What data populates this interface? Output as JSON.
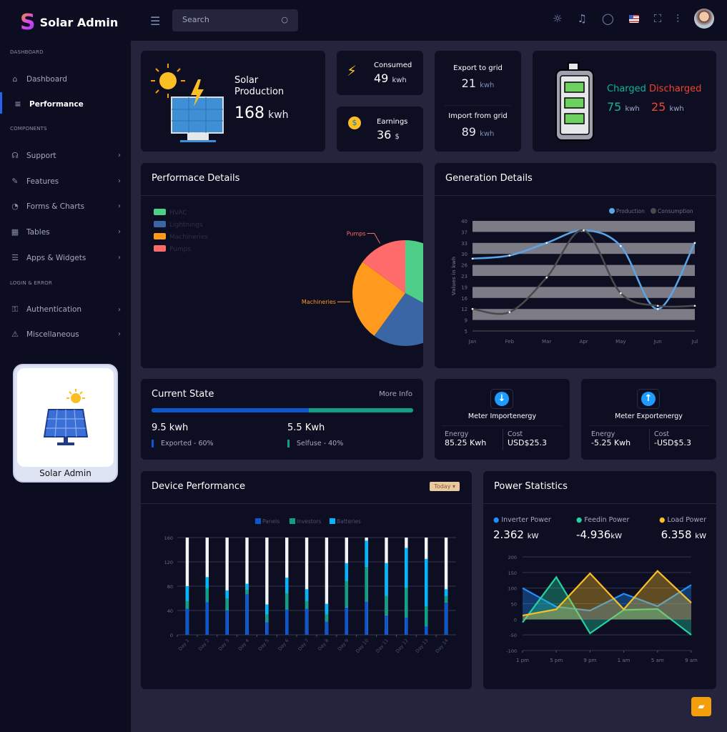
{
  "app": {
    "logo_letter": "S",
    "title": "Solar Admin"
  },
  "header": {
    "search_placeholder": "Search",
    "icons": [
      "sun-icon",
      "bell-icon",
      "chat-icon",
      "us-flag-icon",
      "fullscreen-icon",
      "sliders-icon",
      "avatar"
    ]
  },
  "sidebar": {
    "sections": [
      "DASHBOARD",
      "COMPONENTS",
      "LOGIN & ERROR"
    ],
    "items": [
      {
        "label": "Dashboard",
        "icon": "home-icon"
      },
      {
        "label": "Performance",
        "icon": "list-icon",
        "active": true
      },
      {
        "label": "Support",
        "icon": "headset-icon"
      },
      {
        "label": "Features",
        "icon": "edit-icon"
      },
      {
        "label": "Forms & Charts",
        "icon": "pie-icon"
      },
      {
        "label": "Tables",
        "icon": "grid-icon"
      },
      {
        "label": "Apps & Widgets",
        "icon": "database-icon"
      },
      {
        "label": "Authentication",
        "icon": "lock-icon"
      },
      {
        "label": "Miscellaneous",
        "icon": "warning-icon"
      }
    ],
    "promo_label": "Solar Admin"
  },
  "stats": {
    "solar": {
      "label1": "Solar",
      "label2": "Production",
      "value": "168",
      "unit": "kwh"
    },
    "consumed": {
      "label": "Consumed",
      "value": "49",
      "unit": "kwh"
    },
    "earnings": {
      "label": "Earnings",
      "value": "36",
      "unit": "$"
    },
    "export": {
      "label": "Export to grid",
      "value": "21",
      "unit": "kwh"
    },
    "import": {
      "label": "Import from grid",
      "value": "89",
      "unit": "kwh"
    },
    "battery": {
      "charged_label": "Charged",
      "discharged_label": "Discharged",
      "charged": "75",
      "discharged": "25",
      "unit": "kwh",
      "charged_color": "#10b59a",
      "discharged_color": "#f0442c"
    }
  },
  "performance": {
    "title": "Performace Details"
  },
  "generation": {
    "title": "Generation Details"
  },
  "current_state": {
    "title": "Current State",
    "more": "More Info",
    "exported_value": "9.5 kwh",
    "selfuse_value": "5.5 Kwh",
    "exported_label": "Exported - 60%",
    "selfuse_label": "Selfuse - 40%",
    "exported_pct": 60,
    "selfuse_pct": 40
  },
  "meter_import": {
    "title": "Meter Importenergy",
    "energy_label": "Energy",
    "energy": "85.25 Kwh",
    "cost_label": "Cost",
    "cost": "USD$25.3"
  },
  "meter_export": {
    "title": "Meter Exportenergy",
    "energy_label": "Energy",
    "energy": "-5.25 Kwh",
    "cost_label": "Cost",
    "cost": "-USD$5.3"
  },
  "device": {
    "title": "Device Performance",
    "filter": "Today"
  },
  "power": {
    "title": "Power Statistics",
    "stats": [
      {
        "label": "Inverter Power",
        "value": "2.362",
        "unit": "kW",
        "color": "#1e90ff"
      },
      {
        "label": "Feedin Power",
        "value": "-4.936",
        "unit": "kW",
        "color": "#22d3a0"
      },
      {
        "label": "Load Power",
        "value": "6.358",
        "unit": "kW",
        "color": "#fbbf24"
      }
    ]
  },
  "chart_data": [
    {
      "type": "pie",
      "legend": [
        "HVAC",
        "Lightnings",
        "Machineries",
        "Pumps"
      ],
      "values": [
        33,
        27,
        25,
        15
      ],
      "colors": [
        "#4ecf87",
        "#3a66a5",
        "#ff9a1f",
        "#ff6b6b"
      ],
      "labels_shown": [
        "Pumps",
        "Machineries"
      ],
      "legend_position": "top-left"
    },
    {
      "type": "line",
      "categories": [
        "Jan",
        "Feb",
        "Mar",
        "Apr",
        "May",
        "Jun",
        "Jul"
      ],
      "ylabel": "Values in kwh",
      "yticks": [
        5,
        9,
        12,
        16,
        19,
        23,
        26,
        30,
        33,
        37,
        40
      ],
      "ylim": [
        5,
        40
      ],
      "series": [
        {
          "name": "Production",
          "values": [
            28,
            29,
            33,
            37,
            32,
            12,
            33
          ],
          "color": "#5aa5e6"
        },
        {
          "name": "Consumption",
          "values": [
            12,
            11,
            22,
            37,
            17,
            13,
            13
          ],
          "color": "#4a4a4a"
        }
      ],
      "legend_position": "top-right"
    },
    {
      "type": "bar",
      "stacked": true,
      "categories": [
        "Day 1",
        "Day 2",
        "Day 3",
        "Day 4",
        "Day 5",
        "Day 6",
        "Day 7",
        "Day 8",
        "Day 9",
        "Day 10",
        "Day 11",
        "Day 12",
        "Day 13",
        "Day 14"
      ],
      "ylim": [
        0,
        160
      ],
      "yticks": [
        0,
        40,
        80,
        120,
        160
      ],
      "series": [
        {
          "name": "Panels",
          "values": [
            43,
            54,
            40,
            67,
            21,
            42,
            43,
            22,
            45,
            55,
            32,
            29,
            14,
            53
          ],
          "color": "#0b57d0"
        },
        {
          "name": "Investors",
          "values": [
            13,
            23,
            20,
            8,
            13,
            27,
            13,
            12,
            44,
            57,
            32,
            49,
            33,
            11
          ],
          "color": "#0e9f86"
        },
        {
          "name": "Batteries",
          "values": [
            24,
            18,
            13,
            9,
            16,
            25,
            19,
            17,
            29,
            43,
            54,
            65,
            78,
            11
          ],
          "color": "#00b7ff"
        }
      ],
      "legend_position": "top"
    },
    {
      "type": "area",
      "categories": [
        "1 pm",
        "5 pm",
        "9 pm",
        "1 am",
        "5 am",
        "9 am"
      ],
      "ylim": [
        -100,
        200
      ],
      "yticks": [
        -100,
        -50,
        0,
        50,
        100,
        150,
        200
      ],
      "series": [
        {
          "name": "Inverter Power",
          "values": [
            100,
            40,
            28,
            82,
            42,
            110
          ],
          "color": "#1e90ff"
        },
        {
          "name": "Feedin Power",
          "values": [
            -10,
            135,
            -45,
            30,
            33,
            -50
          ],
          "color": "#22d3a0"
        },
        {
          "name": "Load Power",
          "values": [
            12,
            32,
            147,
            32,
            155,
            53
          ],
          "color": "#fbbf24"
        }
      ]
    }
  ]
}
